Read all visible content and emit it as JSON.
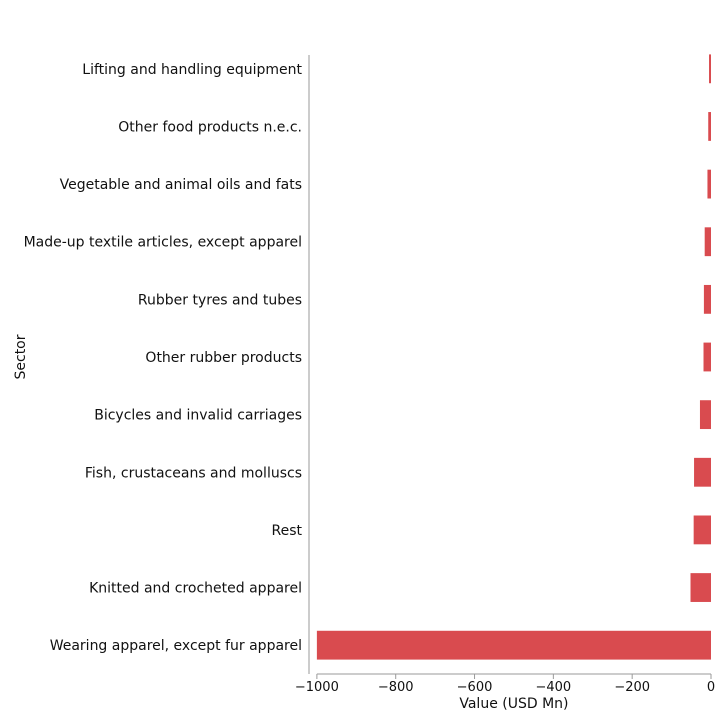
{
  "chart_data": {
    "type": "bar",
    "orientation": "horizontal",
    "xlabel": "Value (USD Mn)",
    "ylabel": "Sector",
    "xlim": [
      -1020,
      0
    ],
    "xticks": [
      -1000,
      -800,
      -600,
      -400,
      -200,
      0
    ],
    "xtick_labels": [
      "−1000",
      "−800",
      "−600",
      "−400",
      "−200",
      "0"
    ],
    "bar_color": "#d94b4f",
    "grid": false,
    "categories": [
      "Lifting and handling equipment",
      "Other food products n.e.c.",
      "Vegetable and animal oils and fats",
      "Made-up textile articles, except apparel",
      "Rubber tyres and tubes",
      "Other rubber products",
      "Bicycles and invalid carriages",
      "Fish, crustaceans and molluscs",
      "Rest",
      "Knitted and crocheted apparel",
      "Wearing apparel, except fur apparel"
    ],
    "values": [
      -5,
      -7,
      -9,
      -16,
      -18,
      -19,
      -28,
      -43,
      -44,
      -52,
      -1000
    ]
  }
}
